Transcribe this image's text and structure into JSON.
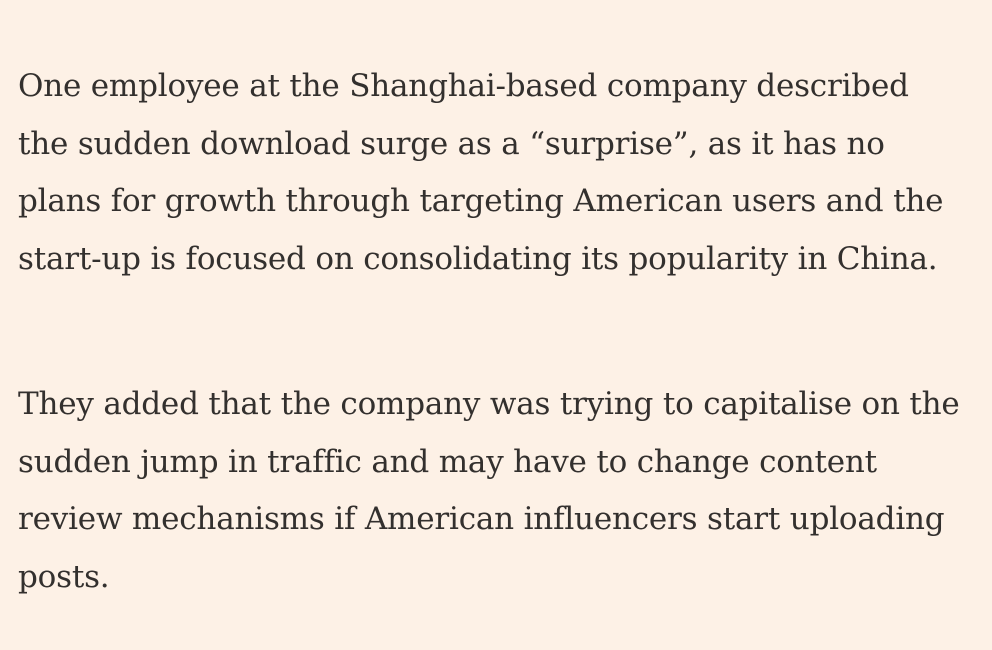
{
  "article": {
    "paragraphs": [
      {
        "lines": [
          "One employee at the Shanghai-based company described",
          "the sudden download surge as a “surprise”, as it has no",
          "plans for growth through targeting American users and the",
          "start-up is focused on consolidating its popularity in China."
        ]
      },
      {
        "lines": [
          "They added that the company was trying to capitalise on the",
          "sudden jump in traffic and may have to change content",
          "review mechanisms if American influencers start uploading",
          "posts."
        ]
      }
    ]
  }
}
